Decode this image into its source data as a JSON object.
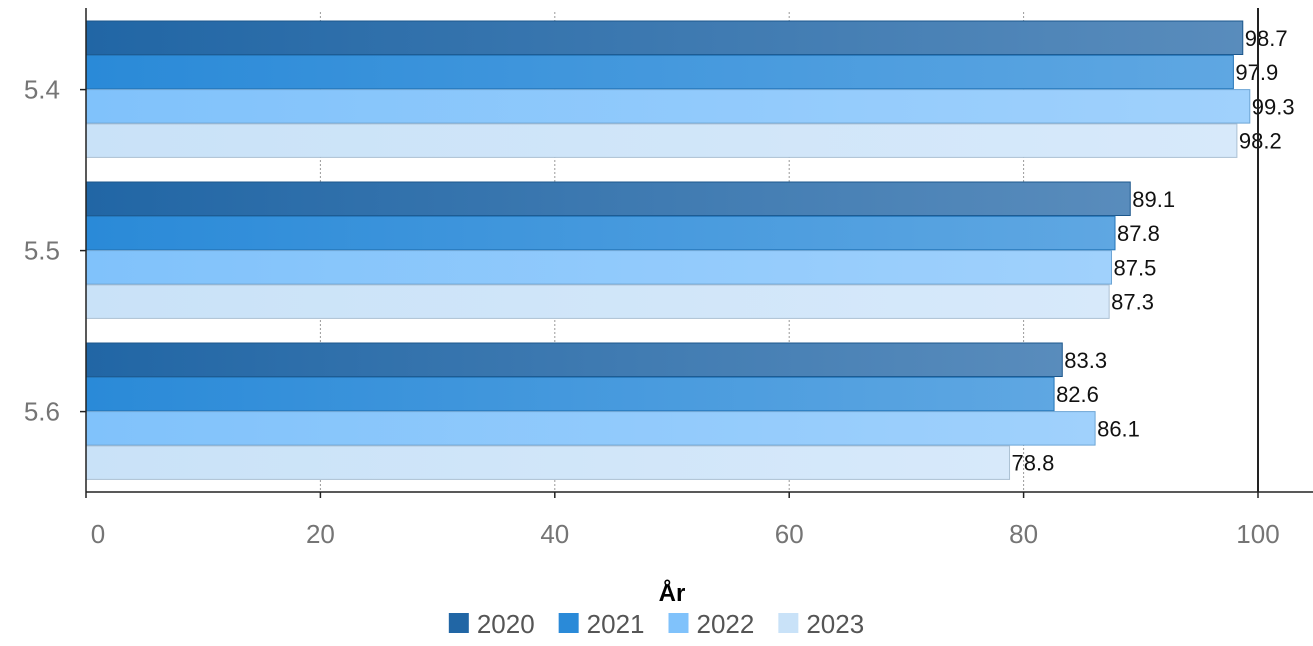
{
  "chart_data": {
    "type": "bar",
    "orientation": "horizontal",
    "categories": [
      "5.4",
      "5.5",
      "5.6"
    ],
    "series": [
      {
        "name": "2020",
        "values": [
          98.7,
          89.1,
          83.3
        ],
        "color": "#2166a5"
      },
      {
        "name": "2021",
        "values": [
          97.9,
          87.8,
          82.6
        ],
        "color": "#2a8ad8"
      },
      {
        "name": "2022",
        "values": [
          99.3,
          87.5,
          86.1
        ],
        "color": "#80c2fb"
      },
      {
        "name": "2023",
        "values": [
          98.2,
          87.3,
          78.8
        ],
        "color": "#c9e2f8"
      }
    ],
    "xlabel": "År",
    "xlim": [
      0,
      100
    ],
    "xticks": [
      "0",
      "20",
      "40",
      "60",
      "80",
      "100"
    ],
    "grid": "vertical dotted",
    "legend": "bottom-center",
    "reference_line": 100
  }
}
